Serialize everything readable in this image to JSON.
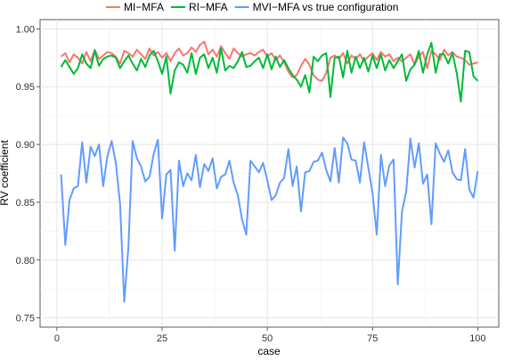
{
  "chart_data": {
    "type": "line",
    "xlabel": "case",
    "ylabel": "RV coefficient",
    "xlim": [
      -4,
      105
    ],
    "ylim": [
      0.742,
      1.008
    ],
    "x_ticks": [
      0,
      25,
      50,
      75,
      100
    ],
    "x_tick_labels": [
      "0",
      "25",
      "50",
      "75",
      "100"
    ],
    "y_ticks": [
      0.75,
      0.8,
      0.85,
      0.9,
      0.95,
      1.0
    ],
    "y_tick_labels": [
      "0.75",
      "0.80",
      "0.85",
      "0.90",
      "0.95",
      "1.00"
    ],
    "grid": true,
    "legend_position": "top",
    "x": [
      1,
      2,
      3,
      4,
      5,
      6,
      7,
      8,
      9,
      10,
      11,
      12,
      13,
      14,
      15,
      16,
      17,
      18,
      19,
      20,
      21,
      22,
      23,
      24,
      25,
      26,
      27,
      28,
      29,
      30,
      31,
      32,
      33,
      34,
      35,
      36,
      37,
      38,
      39,
      40,
      41,
      42,
      43,
      44,
      45,
      46,
      47,
      48,
      49,
      50,
      51,
      52,
      53,
      54,
      55,
      56,
      57,
      58,
      59,
      60,
      61,
      62,
      63,
      64,
      65,
      66,
      67,
      68,
      69,
      70,
      71,
      72,
      73,
      74,
      75,
      76,
      77,
      78,
      79,
      80,
      81,
      82,
      83,
      84,
      85,
      86,
      87,
      88,
      89,
      90,
      91,
      92,
      93,
      94,
      95,
      96,
      97,
      98,
      99,
      100
    ],
    "series": [
      {
        "name": "MI−MFA",
        "color": "#F8766D",
        "values": [
          0.976,
          0.979,
          0.971,
          0.978,
          0.975,
          0.97,
          0.98,
          0.972,
          0.982,
          0.974,
          0.977,
          0.98,
          0.979,
          0.976,
          0.97,
          0.981,
          0.979,
          0.976,
          0.982,
          0.978,
          0.974,
          0.983,
          0.977,
          0.98,
          0.975,
          0.979,
          0.972,
          0.979,
          0.983,
          0.977,
          0.979,
          0.984,
          0.98,
          0.986,
          0.989,
          0.978,
          0.982,
          0.976,
          0.985,
          0.979,
          0.974,
          0.983,
          0.979,
          0.976,
          0.978,
          0.979,
          0.977,
          0.98,
          0.982,
          0.976,
          0.979,
          0.973,
          0.977,
          0.971,
          0.963,
          0.958,
          0.96,
          0.968,
          0.974,
          0.969,
          0.96,
          0.956,
          0.955,
          0.962,
          0.975,
          0.977,
          0.974,
          0.979,
          0.97,
          0.977,
          0.974,
          0.978,
          0.972,
          0.976,
          0.979,
          0.973,
          0.98,
          0.976,
          0.978,
          0.972,
          0.975,
          0.972,
          0.975,
          0.978,
          0.969,
          0.976,
          0.98,
          0.966,
          0.981,
          0.978,
          0.973,
          0.982,
          0.977,
          0.98,
          0.976,
          0.975,
          0.973,
          0.969,
          0.97,
          0.971
        ]
      },
      {
        "name": "RI−MFA",
        "color": "#00BA38",
        "values": [
          0.967,
          0.973,
          0.967,
          0.961,
          0.966,
          0.978,
          0.97,
          0.966,
          0.981,
          0.968,
          0.974,
          0.976,
          0.977,
          0.975,
          0.966,
          0.972,
          0.977,
          0.97,
          0.964,
          0.974,
          0.967,
          0.977,
          0.981,
          0.972,
          0.961,
          0.976,
          0.944,
          0.964,
          0.971,
          0.969,
          0.962,
          0.979,
          0.961,
          0.975,
          0.978,
          0.966,
          0.975,
          0.962,
          0.983,
          0.964,
          0.968,
          0.966,
          0.972,
          0.98,
          0.967,
          0.968,
          0.972,
          0.975,
          0.966,
          0.978,
          0.965,
          0.976,
          0.967,
          0.973,
          0.966,
          0.96,
          0.956,
          0.95,
          0.96,
          0.945,
          0.976,
          0.972,
          0.977,
          0.979,
          0.941,
          0.975,
          0.976,
          0.958,
          0.981,
          0.962,
          0.976,
          0.966,
          0.975,
          0.963,
          0.977,
          0.966,
          0.978,
          0.964,
          0.973,
          0.966,
          0.972,
          0.978,
          0.955,
          0.965,
          0.969,
          0.981,
          0.962,
          0.978,
          0.988,
          0.962,
          0.978,
          0.978,
          0.97,
          0.979,
          0.962,
          0.937,
          0.981,
          0.98,
          0.959,
          0.955
        ]
      },
      {
        "name": "MVI−MFA vs true configuration",
        "color": "#619CFF",
        "values": [
          0.874,
          0.813,
          0.852,
          0.862,
          0.864,
          0.902,
          0.867,
          0.898,
          0.89,
          0.9,
          0.864,
          0.89,
          0.903,
          0.884,
          0.849,
          0.764,
          0.812,
          0.903,
          0.888,
          0.881,
          0.868,
          0.872,
          0.892,
          0.904,
          0.836,
          0.874,
          0.878,
          0.808,
          0.886,
          0.864,
          0.875,
          0.869,
          0.891,
          0.863,
          0.883,
          0.877,
          0.888,
          0.862,
          0.872,
          0.874,
          0.886,
          0.867,
          0.856,
          0.835,
          0.822,
          0.886,
          0.881,
          0.876,
          0.884,
          0.869,
          0.852,
          0.856,
          0.867,
          0.871,
          0.896,
          0.864,
          0.881,
          0.842,
          0.876,
          0.877,
          0.885,
          0.886,
          0.893,
          0.878,
          0.868,
          0.897,
          0.867,
          0.906,
          0.901,
          0.887,
          0.886,
          0.867,
          0.902,
          0.88,
          0.858,
          0.822,
          0.891,
          0.864,
          0.882,
          0.887,
          0.779,
          0.842,
          0.859,
          0.905,
          0.88,
          0.901,
          0.866,
          0.874,
          0.831,
          0.901,
          0.892,
          0.885,
          0.895,
          0.876,
          0.87,
          0.869,
          0.896,
          0.861,
          0.854,
          0.877
        ]
      }
    ]
  }
}
